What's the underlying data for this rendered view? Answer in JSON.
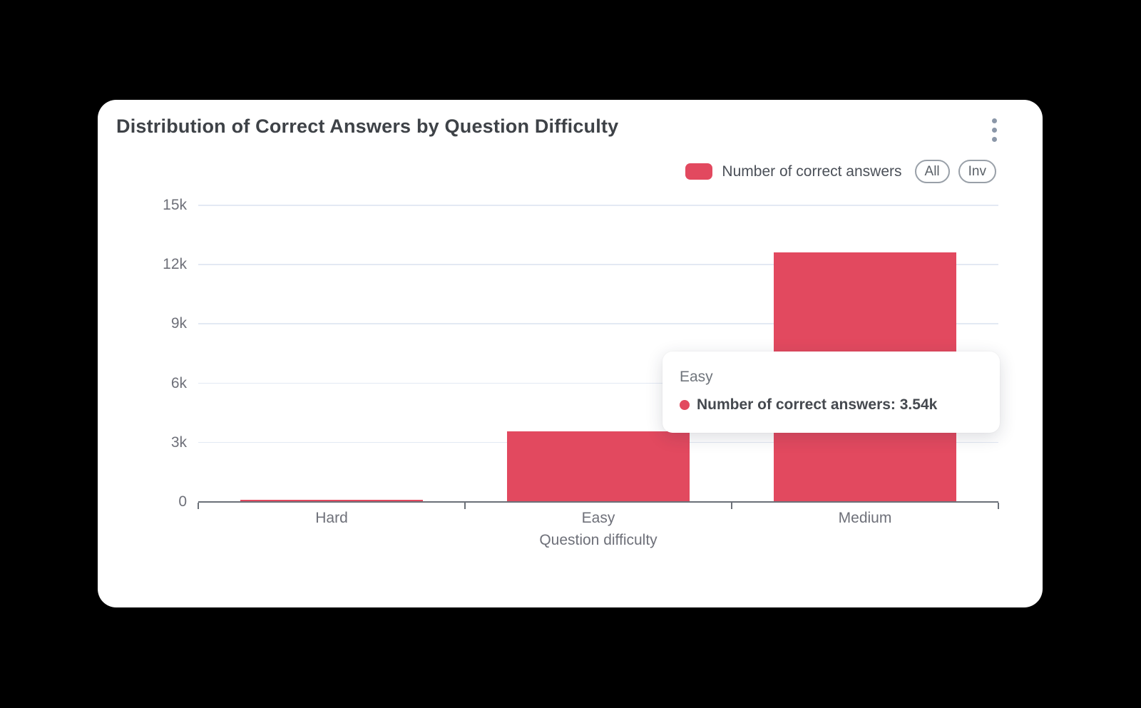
{
  "header": {
    "title": "Distribution of Correct Answers by Question Difficulty"
  },
  "legend": {
    "label": "Number of correct answers",
    "all_label": "All",
    "inv_label": "Inv"
  },
  "chart_data": {
    "type": "bar",
    "title": "Distribution of Correct Answers by Question Difficulty",
    "categories": [
      "Hard",
      "Easy",
      "Medium"
    ],
    "series": [
      {
        "name": "Number of correct answers",
        "values": [
          80,
          3540,
          12600
        ]
      }
    ],
    "xlabel": "Question difficulty",
    "ylabel": "",
    "ylim": [
      0,
      15000
    ],
    "ytick_values": [
      0,
      3000,
      6000,
      9000,
      12000,
      15000
    ],
    "ytick_labels": [
      "0",
      "3k",
      "6k",
      "9k",
      "12k",
      "15k"
    ],
    "grid": true,
    "legend_position": "top-right",
    "bar_band_ratio": 0.685,
    "tooltip_shown_value": "3.54k"
  },
  "tooltip": {
    "category": "Easy",
    "text": "Number of correct answers: 3.54k"
  },
  "icons": {
    "menu": "kebab-vertical-icon",
    "legend_swatch": "series-color-swatch",
    "tooltip_marker": "series-dot-icon"
  },
  "colors": {
    "bar": "#e2495f",
    "page_bg": "#000000",
    "card_bg": "#ffffff",
    "grid_line": "#e3e9f3",
    "axis_line": "#6b7078",
    "tick_label": "#6e7079",
    "title_text": "#3e4247",
    "legend_text": "#4b5058",
    "kebab_dot": "#8b97a8"
  }
}
